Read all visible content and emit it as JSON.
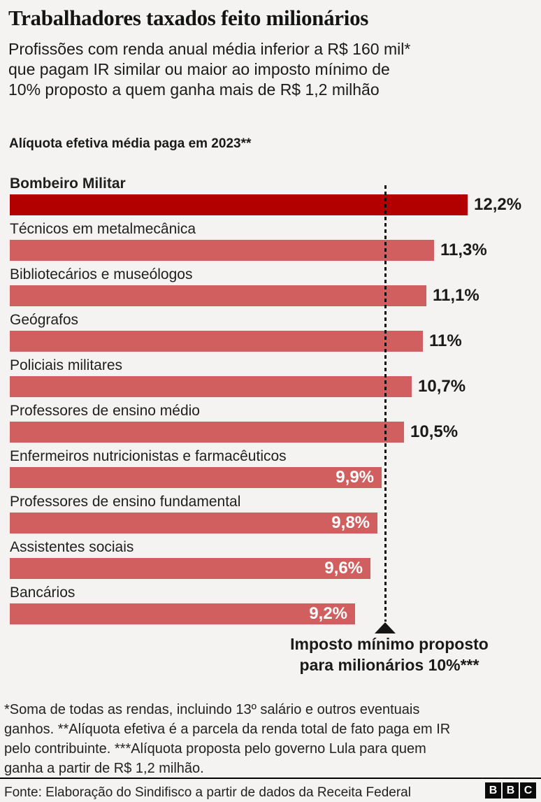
{
  "page": {
    "background": "#f4f3f1"
  },
  "header": {
    "title": "Trabalhadores taxados feito milionários",
    "subtitle": "Profissões com renda anual média inferior a R$ 160 mil* que pagam IR similar ou maior ao imposto mínimo de 10% proposto a quem ganha mais de R$ 1,2 milhão",
    "subtitle_lines": [
      "Profissões com renda anual média inferior a R$ 160 mil*",
      "que pagam IR similar ou maior ao imposto mínimo de",
      "10% proposto a quem ganha mais de R$ 1,2 milhão"
    ]
  },
  "chart_data": {
    "type": "bar",
    "orientation": "horizontal",
    "title": "Alíquota efetiva média paga em 2023**",
    "categories": [
      "Bombeiro Militar",
      "Técnicos em metalmecânica",
      "Bibliotecários e museólogos",
      "Geógrafos",
      "Policiais militares",
      "Professores de ensino médio",
      "Enfermeiros nutricionistas e farmacêuticos",
      "Professores de ensino fundamental",
      "Assistentes sociais",
      "Bancários"
    ],
    "values": [
      12.2,
      11.3,
      11.1,
      11,
      10.7,
      10.5,
      9.9,
      9.8,
      9.6,
      9.2
    ],
    "value_labels": [
      "12,2%",
      "11,3%",
      "11,1%",
      "11%",
      "10,7%",
      "10,5%",
      "9,9%",
      "9,8%",
      "9,6%",
      "9,2%"
    ],
    "xlim": [
      0,
      12.2
    ],
    "grid": false,
    "legend": false,
    "highlight_index": 0,
    "bar_color": "#d25f5f",
    "highlight_color": "#b20000",
    "reference_line": {
      "value": 10,
      "label": "Imposto mínimo proposto para milionários 10%***",
      "label_lines": [
        "Imposto mínimo proposto",
        "para milionários 10%***"
      ]
    }
  },
  "footnote": {
    "text": "*Soma de todas as rendas, incluindo 13º salário e outros eventuais ganhos. **Alíquota efetiva é a parcela da renda total de fato paga em IR pelo contribuinte. ***Alíquota proposta pelo governo Lula para quem ganha a partir de R$ 1,2 milhão.",
    "lines": [
      "*Soma de todas as rendas, incluindo 13º salário e outros eventuais",
      "ganhos. **Alíquota efetiva é a parcela da renda total de fato paga em IR",
      "pelo contribuinte. ***Alíquota proposta pelo governo Lula para quem",
      "ganha a partir de R$ 1,2 milhão."
    ]
  },
  "footer": {
    "source": "Fonte: Elaboração do Sindifisco a partir de dados da Receita Federal",
    "logo_letters": [
      "B",
      "B",
      "C"
    ]
  }
}
